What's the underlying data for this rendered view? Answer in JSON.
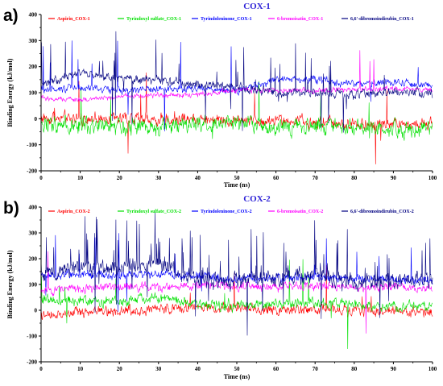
{
  "chart_data": [
    {
      "type": "line",
      "panel_label": "a)",
      "title": "COX-1",
      "xlabel": "Time (ns)",
      "ylabel": "Binding Energy (kJ/mol)",
      "xlim": [
        0,
        100
      ],
      "ylim": [
        -200,
        400
      ],
      "x_ticks": [
        "0",
        "10",
        "20",
        "30",
        "40",
        "50",
        "60",
        "70",
        "80",
        "90",
        "100"
      ],
      "y_ticks": [
        "-200",
        "-100",
        "0",
        "100",
        "200",
        "300",
        "400"
      ],
      "grid": false,
      "legend_position": "top",
      "series": [
        {
          "name": "Aspirin_COX-1",
          "color": "#ff0000",
          "x": [
            0,
            10,
            20,
            30,
            40,
            50,
            60,
            70,
            80,
            90,
            100
          ],
          "values": [
            5,
            2,
            0,
            -2,
            3,
            -3,
            -8,
            -12,
            -18,
            -22,
            -20
          ],
          "noise": 16,
          "spikes": 2
        },
        {
          "name": "Tyrindoxyl sulfate_COX-1",
          "color": "#00e000",
          "x": [
            0,
            10,
            20,
            30,
            40,
            50,
            60,
            70,
            80,
            90,
            100
          ],
          "values": [
            -20,
            -25,
            -30,
            -28,
            -22,
            -18,
            -35,
            -30,
            -35,
            -40,
            -48
          ],
          "noise": 22,
          "spikes": 3
        },
        {
          "name": "Tyrindoleninone_COX-1",
          "color": "#0000ff",
          "x": [
            0,
            10,
            20,
            30,
            40,
            50,
            60,
            70,
            80,
            90,
            100
          ],
          "values": [
            110,
            118,
            110,
            112,
            118,
            108,
            150,
            150,
            135,
            140,
            130
          ],
          "noise": 10,
          "spikes": 4
        },
        {
          "name": "6-bromoisatin_COX-1",
          "color": "#ff00ff",
          "x": [
            0,
            10,
            20,
            30,
            40,
            50,
            60,
            70,
            80,
            90,
            100
          ],
          "values": [
            80,
            72,
            85,
            90,
            92,
            110,
            108,
            108,
            112,
            115,
            110
          ],
          "noise": 7,
          "spikes": 1
        },
        {
          "name": "6,6'-dibromoindirubin_COX-1",
          "color": "#000080",
          "x": [
            0,
            10,
            20,
            30,
            40,
            50,
            60,
            70,
            80,
            90,
            100
          ],
          "values": [
            130,
            175,
            150,
            148,
            130,
            120,
            100,
            100,
            90,
            100,
            102
          ],
          "noise": 12,
          "spikes": 14
        }
      ]
    },
    {
      "type": "line",
      "panel_label": "b)",
      "title": "COX-2",
      "xlabel": "Time (ns)",
      "ylabel": "Binding Energy (kJ/mol)",
      "xlim": [
        0,
        100
      ],
      "ylim": [
        -200,
        400
      ],
      "x_ticks": [
        "0",
        "10",
        "20",
        "30",
        "40",
        "50",
        "60",
        "70",
        "80",
        "90",
        "100"
      ],
      "y_ticks": [
        "-200",
        "-100",
        "0",
        "100",
        "200",
        "300",
        "400"
      ],
      "grid": false,
      "legend_position": "top",
      "series": [
        {
          "name": "Aspirin_COX-2",
          "color": "#ff0000",
          "x": [
            0,
            10,
            20,
            30,
            40,
            50,
            60,
            70,
            80,
            90,
            100
          ],
          "values": [
            -25,
            -10,
            0,
            5,
            10,
            8,
            2,
            5,
            0,
            -2,
            -5
          ],
          "noise": 14,
          "spikes": 2
        },
        {
          "name": "Tyrindoxyl sulfate_COX-2",
          "color": "#00e000",
          "x": [
            0,
            10,
            20,
            30,
            40,
            50,
            60,
            70,
            80,
            90,
            100
          ],
          "values": [
            40,
            35,
            35,
            50,
            25,
            20,
            25,
            30,
            20,
            15,
            15
          ],
          "noise": 14,
          "spikes": 3
        },
        {
          "name": "Tyrindoleninone_COX-2",
          "color": "#0000ff",
          "x": [
            0,
            10,
            20,
            30,
            40,
            50,
            60,
            70,
            80,
            90,
            100
          ],
          "values": [
            135,
            140,
            135,
            140,
            135,
            120,
            125,
            130,
            120,
            118,
            115
          ],
          "noise": 12,
          "spikes": 6
        },
        {
          "name": "6-bromoisatin_COX-2",
          "color": "#ff00ff",
          "x": [
            0,
            10,
            20,
            30,
            40,
            50,
            60,
            70,
            80,
            90,
            100
          ],
          "values": [
            80,
            85,
            90,
            90,
            95,
            95,
            92,
            95,
            90,
            88,
            85
          ],
          "noise": 12,
          "spikes": 2
        },
        {
          "name": "6,6'-dibromoindirubin_COX-2",
          "color": "#000080",
          "x": [
            0,
            10,
            20,
            30,
            40,
            50,
            60,
            70,
            80,
            90,
            100
          ],
          "values": [
            140,
            165,
            170,
            180,
            110,
            115,
            120,
            140,
            110,
            115,
            120
          ],
          "noise": 22,
          "spikes": 24
        }
      ]
    }
  ]
}
